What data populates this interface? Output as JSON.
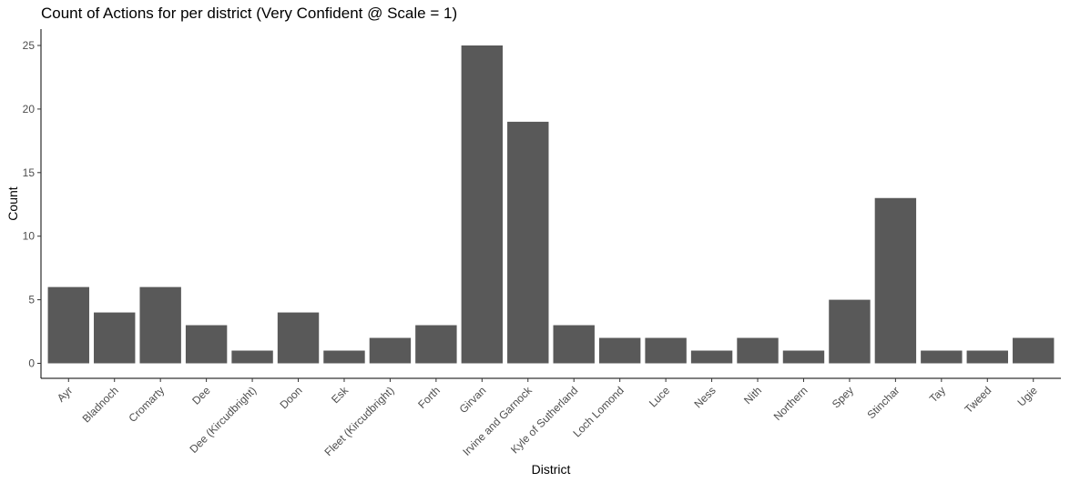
{
  "chart_data": {
    "type": "bar",
    "title": "Count of Actions for per district (Very Confident @ Scale = 1)",
    "xlabel": "District",
    "ylabel": "Count",
    "categories": [
      "Ayr",
      "Bladnoch",
      "Cromarty",
      "Dee",
      "Dee (Kircudbright)",
      "Doon",
      "Esk",
      "Fleet (Kircudbright)",
      "Forth",
      "Girvan",
      "Irvine and Garnock",
      "Kyle of Sutherland",
      "Loch Lomond",
      "Luce",
      "Ness",
      "Nith",
      "Northern",
      "Spey",
      "Stinchar",
      "Tay",
      "Tweed",
      "Ugie"
    ],
    "values": [
      6,
      4,
      6,
      3,
      1,
      4,
      1,
      2,
      3,
      25,
      19,
      3,
      2,
      2,
      1,
      2,
      1,
      5,
      13,
      1,
      1,
      2
    ],
    "ylim": [
      0,
      25
    ],
    "yticks": [
      0,
      5,
      10,
      15,
      20,
      25
    ],
    "grid": false,
    "bar_color": "#595959",
    "axis_color": "#000000"
  }
}
